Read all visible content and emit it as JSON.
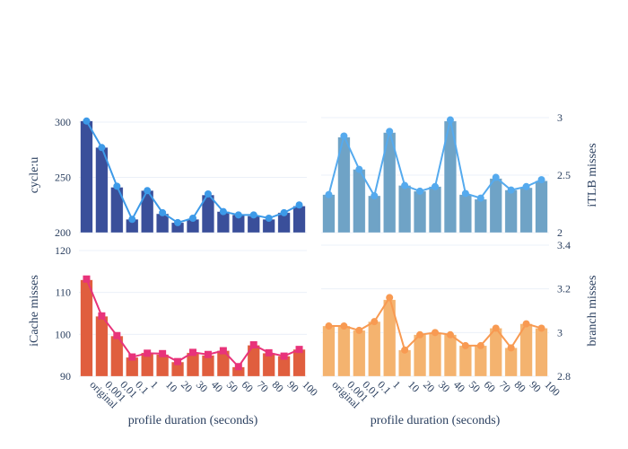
{
  "chart_data": [
    {
      "type": "bar",
      "panel": "top-left",
      "categories": [
        "original",
        "0.001",
        "0.01",
        "0.1",
        "1",
        "10",
        "20",
        "30",
        "40",
        "50",
        "60",
        "70",
        "80",
        "90",
        "100"
      ],
      "ylabel": "cycle:u",
      "xlabel": "",
      "ylim": [
        200,
        305
      ],
      "yticks": [
        200,
        250,
        300
      ],
      "yaxis_side": "left",
      "grid": true,
      "bar_color": "#3a4f9a",
      "line_color": "#3d9ae8",
      "marker": "circle",
      "series": [
        {
          "name": "bar",
          "type": "bar",
          "values": [
            301,
            277,
            241,
            212,
            238,
            217,
            209,
            212,
            234,
            219,
            216,
            215,
            212,
            218,
            224
          ]
        },
        {
          "name": "line",
          "type": "line",
          "values": [
            301,
            277,
            242,
            212,
            238,
            218,
            209,
            213,
            235,
            219,
            216,
            216,
            213,
            218,
            225
          ]
        }
      ]
    },
    {
      "type": "bar",
      "panel": "top-right",
      "categories": [
        "original",
        "0.001",
        "0.01",
        "0.1",
        "1",
        "10",
        "20",
        "30",
        "40",
        "50",
        "60",
        "70",
        "80",
        "90",
        "100"
      ],
      "ylabel": "iTLB misses",
      "xlabel": "",
      "ylim": [
        2,
        3.02
      ],
      "yticks": [
        2,
        2.5,
        3
      ],
      "yaxis_side": "right",
      "grid": true,
      "bar_color": "#6fa3c6",
      "line_color": "#55aaee",
      "marker": "circle",
      "series": [
        {
          "name": "bar",
          "type": "bar",
          "values": [
            2.33,
            2.83,
            2.55,
            2.32,
            2.87,
            2.41,
            2.36,
            2.4,
            2.97,
            2.33,
            2.29,
            2.47,
            2.37,
            2.39,
            2.45
          ]
        },
        {
          "name": "line",
          "type": "line",
          "values": [
            2.33,
            2.84,
            2.55,
            2.32,
            2.88,
            2.41,
            2.36,
            2.4,
            2.98,
            2.34,
            2.3,
            2.48,
            2.37,
            2.4,
            2.46
          ]
        }
      ]
    },
    {
      "type": "bar",
      "panel": "bottom-left",
      "categories": [
        "original",
        "0.001",
        "0.01",
        "0.1",
        "1",
        "10",
        "20",
        "30",
        "40",
        "50",
        "60",
        "70",
        "80",
        "90",
        "100"
      ],
      "ylabel": "iCache misses",
      "xlabel": "profile duration (seconds)",
      "ylim": [
        90,
        120
      ],
      "yticks": [
        90,
        100,
        110,
        120
      ],
      "yaxis_side": "left",
      "grid": true,
      "bar_color": "#e05e3e",
      "line_color": "#e8337a",
      "marker": "square",
      "series": [
        {
          "name": "bar",
          "type": "bar",
          "values": [
            113.0,
            104.3,
            99.6,
            94.5,
            95.6,
            95.2,
            93.4,
            95.6,
            95.0,
            96.1,
            92.2,
            97.4,
            95.5,
            94.8,
            96.4
          ]
        },
        {
          "name": "line",
          "type": "line",
          "values": [
            113.2,
            104.4,
            99.7,
            94.6,
            95.5,
            95.4,
            93.5,
            95.7,
            95.2,
            96.1,
            92.3,
            97.5,
            95.6,
            94.8,
            96.4
          ]
        }
      ]
    },
    {
      "type": "bar",
      "panel": "bottom-right",
      "categories": [
        "original",
        "0.001",
        "0.01",
        "0.1",
        "1",
        "10",
        "20",
        "30",
        "40",
        "50",
        "60",
        "70",
        "80",
        "90",
        "100"
      ],
      "ylabel": "branch misses",
      "xlabel": "profile duration (seconds)",
      "ylim": [
        2.8,
        3.4
      ],
      "yticks": [
        2.8,
        3,
        3.2,
        3.4
      ],
      "yaxis_side": "right",
      "grid": true,
      "bar_color": "#f4b36f",
      "line_color": "#f89a52",
      "marker": "circle",
      "series": [
        {
          "name": "bar",
          "type": "bar",
          "values": [
            3.03,
            3.03,
            3.01,
            3.05,
            3.15,
            2.92,
            2.99,
            3.0,
            2.99,
            2.94,
            2.94,
            3.02,
            2.93,
            3.04,
            3.02
          ]
        },
        {
          "name": "line",
          "type": "line",
          "values": [
            3.03,
            3.03,
            3.01,
            3.05,
            3.16,
            2.92,
            2.99,
            3.0,
            2.99,
            2.94,
            2.94,
            3.02,
            2.93,
            3.04,
            3.02
          ]
        }
      ]
    }
  ]
}
